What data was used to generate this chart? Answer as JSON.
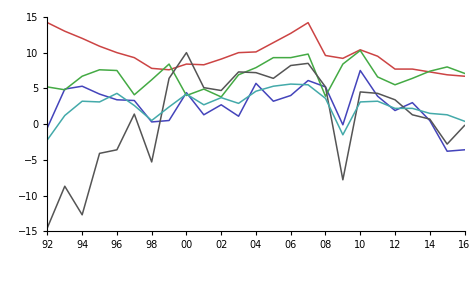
{
  "years": [
    1992,
    1993,
    1994,
    1995,
    1996,
    1997,
    1998,
    1999,
    2000,
    2001,
    2002,
    2003,
    2004,
    2005,
    2006,
    2007,
    2008,
    2009,
    2010,
    2011,
    2012,
    2013,
    2014,
    2015,
    2016
  ],
  "GDPB": [
    -0.5,
    4.9,
    5.3,
    4.2,
    3.4,
    3.3,
    0.3,
    0.5,
    4.4,
    1.3,
    2.7,
    1.1,
    5.7,
    3.2,
    4.0,
    6.1,
    5.2,
    -0.1,
    7.5,
    3.9,
    1.9,
    3.0,
    0.5,
    -3.8,
    -3.6
  ],
  "GDPC": [
    14.2,
    13.0,
    12.0,
    10.9,
    10.0,
    9.3,
    7.8,
    7.6,
    8.4,
    8.3,
    9.1,
    10.0,
    10.1,
    11.4,
    12.7,
    14.2,
    9.6,
    9.2,
    10.4,
    9.5,
    7.7,
    7.7,
    7.3,
    6.9,
    6.7
  ],
  "GDPI": [
    5.2,
    4.8,
    6.7,
    7.6,
    7.5,
    4.1,
    6.2,
    8.4,
    4.0,
    4.9,
    3.8,
    6.9,
    7.9,
    9.3,
    9.3,
    9.8,
    3.9,
    8.4,
    10.3,
    6.6,
    5.5,
    6.4,
    7.4,
    8.0,
    7.1
  ],
  "GDPR": [
    -14.5,
    -8.7,
    -12.7,
    -4.1,
    -3.6,
    1.4,
    -5.3,
    6.4,
    10.0,
    5.1,
    4.7,
    7.3,
    7.2,
    6.4,
    8.2,
    8.5,
    5.2,
    -7.8,
    4.5,
    4.3,
    3.4,
    1.3,
    0.7,
    -2.8,
    -0.2
  ],
  "GDPSA": [
    -2.2,
    1.2,
    3.2,
    3.1,
    4.3,
    2.6,
    0.5,
    2.4,
    4.2,
    2.7,
    3.7,
    2.9,
    4.6,
    5.3,
    5.6,
    5.5,
    3.6,
    -1.5,
    3.1,
    3.2,
    2.2,
    2.2,
    1.5,
    1.3,
    0.4
  ],
  "colors": {
    "GDPB": "#4444bb",
    "GDPC": "#cc4444",
    "GDPI": "#44aa44",
    "GDPR": "#555555",
    "GDPSA": "#44aaaa"
  },
  "ylim": [
    -15,
    15
  ],
  "yticks": [
    -15,
    -10,
    -5,
    0,
    5,
    10,
    15
  ],
  "xtick_labels": [
    "92",
    "94",
    "96",
    "98",
    "00",
    "02",
    "04",
    "06",
    "08",
    "10",
    "12",
    "14",
    "16"
  ],
  "xtick_positions": [
    1992,
    1994,
    1996,
    1998,
    2000,
    2002,
    2004,
    2006,
    2008,
    2010,
    2012,
    2014,
    2016
  ],
  "linewidth": 1.1,
  "fig_width": 4.74,
  "fig_height": 2.82,
  "dpi": 100
}
